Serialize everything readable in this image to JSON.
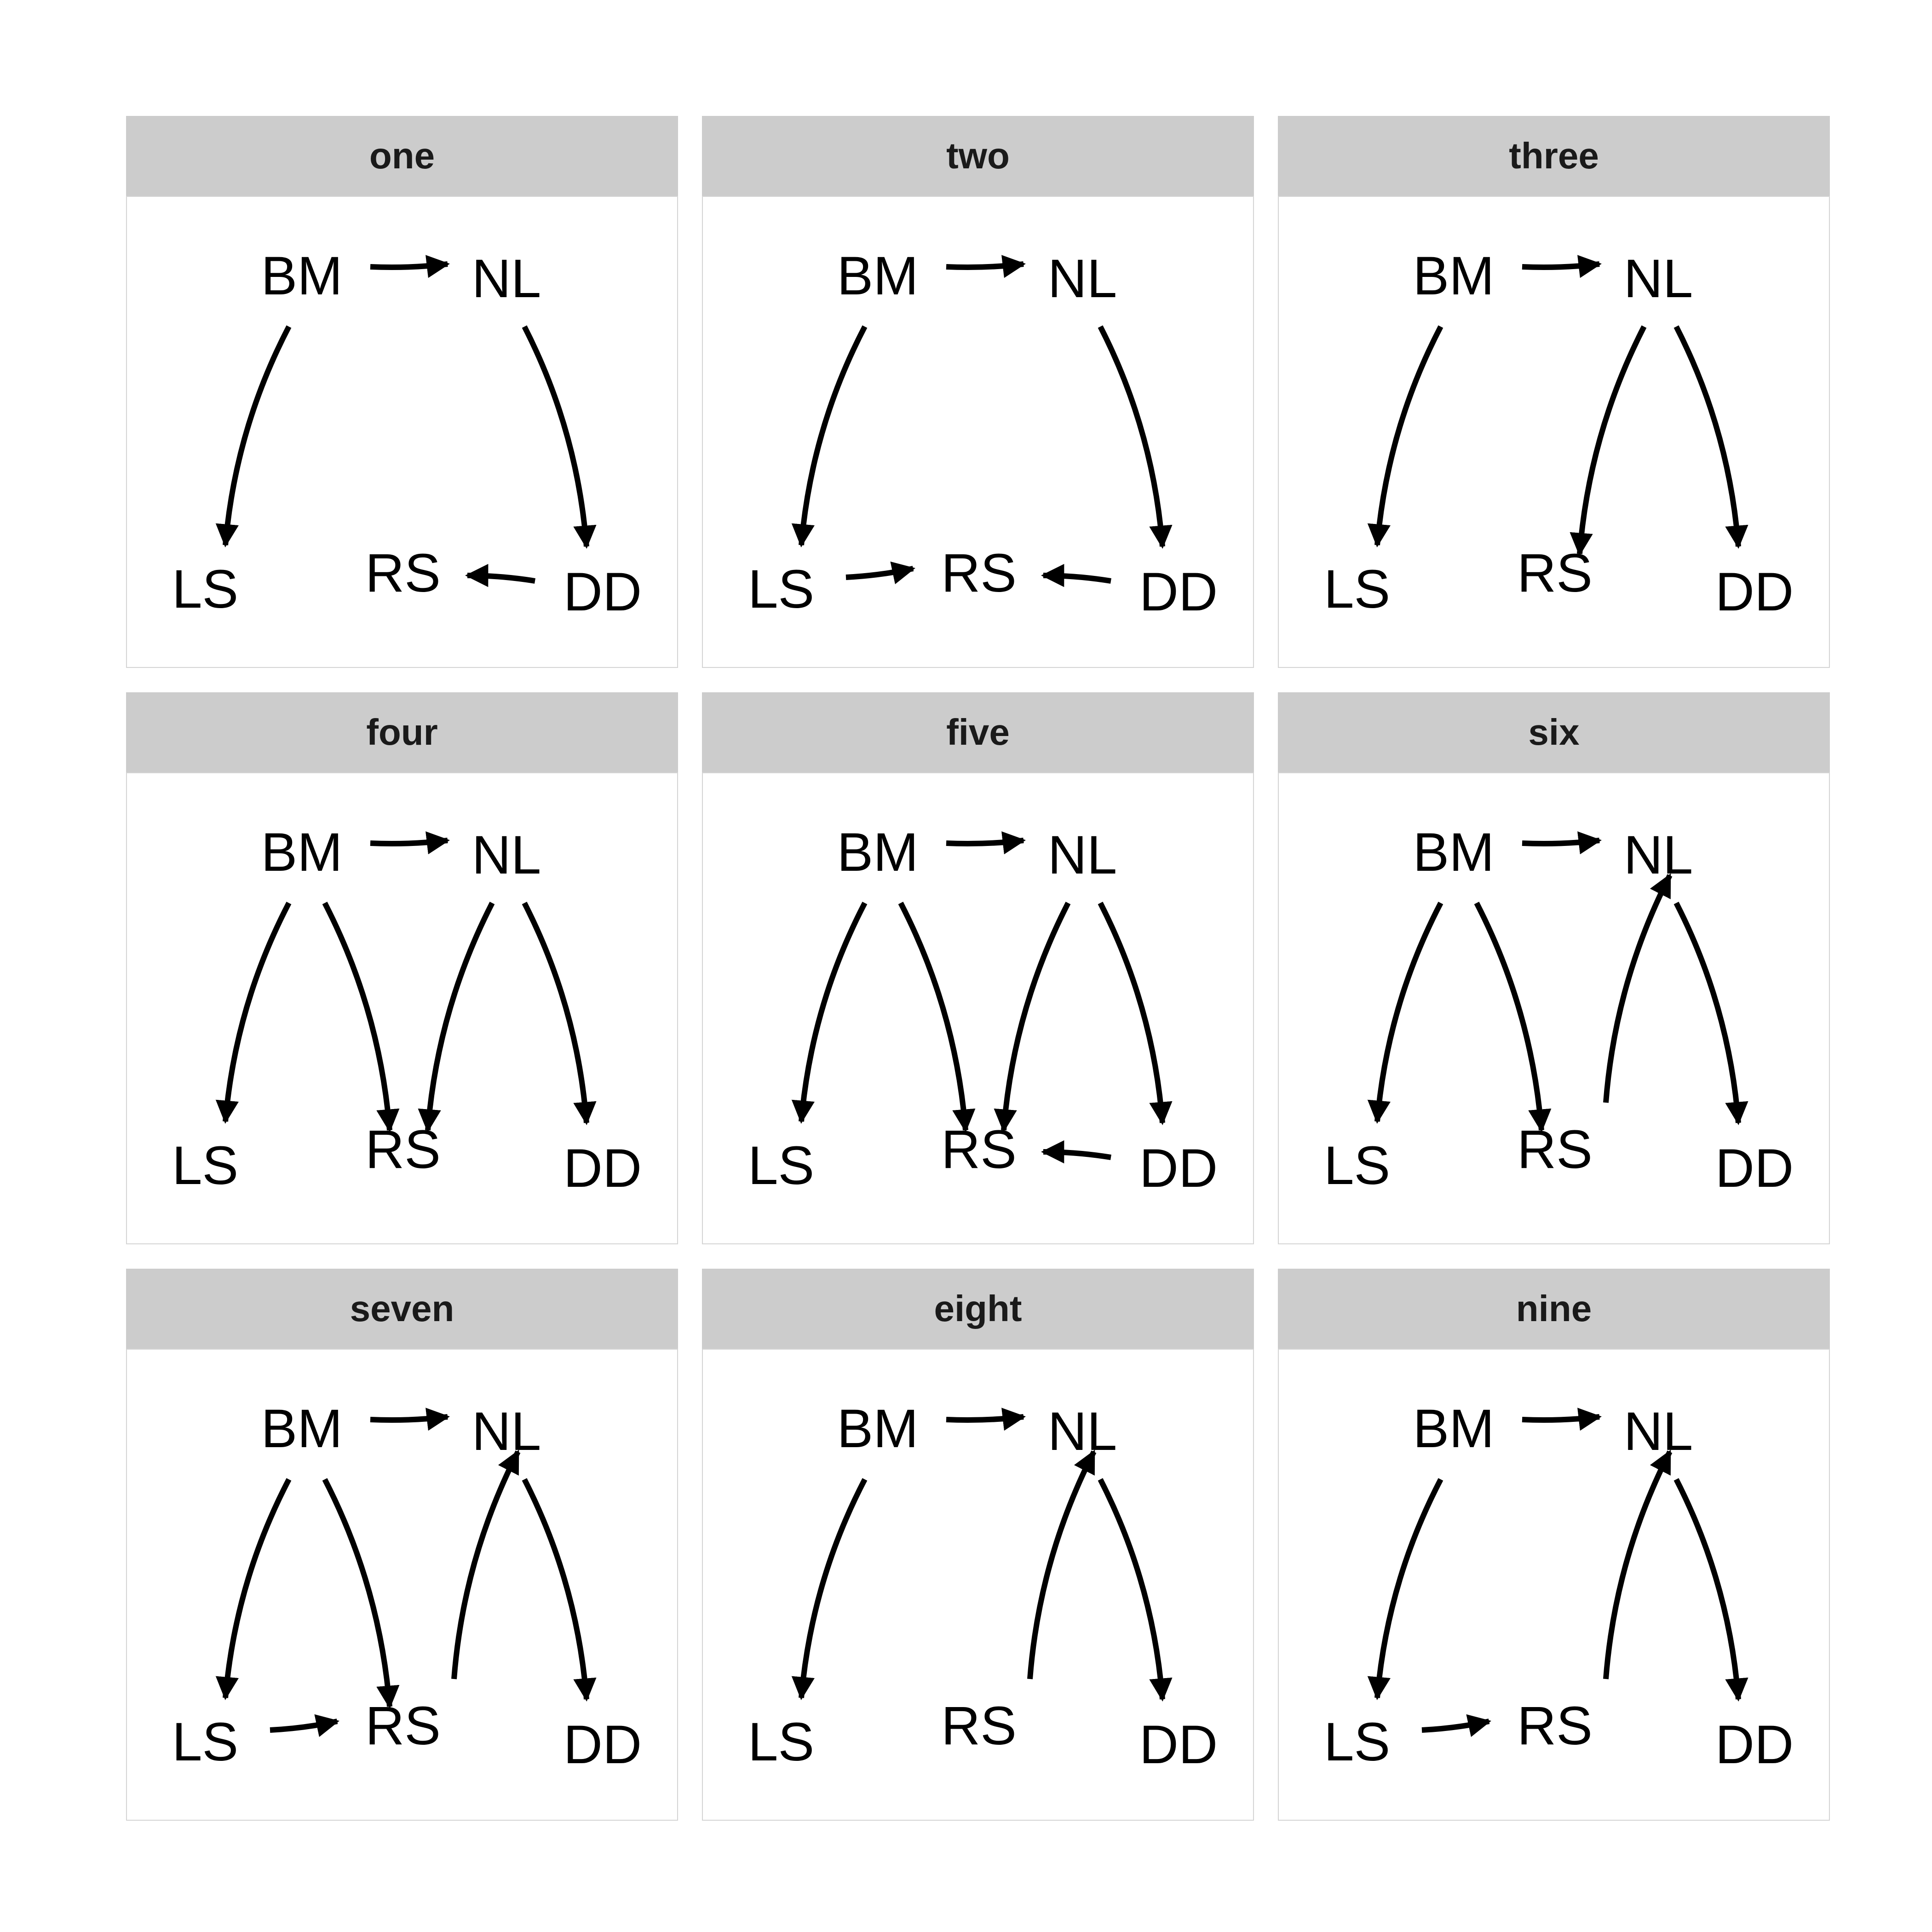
{
  "nodes": [
    {
      "id": "BM",
      "label": "BM"
    },
    {
      "id": "NL",
      "label": "NL"
    },
    {
      "id": "LS",
      "label": "LS"
    },
    {
      "id": "RS",
      "label": "RS"
    },
    {
      "id": "DD",
      "label": "DD"
    }
  ],
  "panels": [
    {
      "title": "one",
      "edges": [
        [
          "BM",
          "NL"
        ],
        [
          "BM",
          "LS"
        ],
        [
          "NL",
          "DD"
        ],
        [
          "DD",
          "RS"
        ]
      ]
    },
    {
      "title": "two",
      "edges": [
        [
          "BM",
          "NL"
        ],
        [
          "BM",
          "LS"
        ],
        [
          "NL",
          "DD"
        ],
        [
          "LS",
          "RS"
        ],
        [
          "DD",
          "RS"
        ]
      ]
    },
    {
      "title": "three",
      "edges": [
        [
          "BM",
          "NL"
        ],
        [
          "BM",
          "LS"
        ],
        [
          "NL",
          "RS"
        ],
        [
          "NL",
          "DD"
        ]
      ]
    },
    {
      "title": "four",
      "edges": [
        [
          "BM",
          "NL"
        ],
        [
          "BM",
          "LS"
        ],
        [
          "BM",
          "RS"
        ],
        [
          "NL",
          "RS"
        ],
        [
          "NL",
          "DD"
        ]
      ]
    },
    {
      "title": "five",
      "edges": [
        [
          "BM",
          "NL"
        ],
        [
          "BM",
          "LS"
        ],
        [
          "BM",
          "RS"
        ],
        [
          "NL",
          "RS"
        ],
        [
          "NL",
          "DD"
        ],
        [
          "DD",
          "RS"
        ]
      ]
    },
    {
      "title": "six",
      "edges": [
        [
          "BM",
          "NL"
        ],
        [
          "BM",
          "LS"
        ],
        [
          "BM",
          "RS"
        ],
        [
          "RS",
          "NL"
        ],
        [
          "NL",
          "DD"
        ]
      ]
    },
    {
      "title": "seven",
      "edges": [
        [
          "BM",
          "NL"
        ],
        [
          "BM",
          "LS"
        ],
        [
          "BM",
          "RS"
        ],
        [
          "RS",
          "NL"
        ],
        [
          "NL",
          "DD"
        ],
        [
          "LS",
          "RS"
        ]
      ]
    },
    {
      "title": "eight",
      "edges": [
        [
          "BM",
          "NL"
        ],
        [
          "BM",
          "LS"
        ],
        [
          "RS",
          "NL"
        ],
        [
          "NL",
          "DD"
        ]
      ]
    },
    {
      "title": "nine",
      "edges": [
        [
          "BM",
          "NL"
        ],
        [
          "BM",
          "LS"
        ],
        [
          "RS",
          "NL"
        ],
        [
          "NL",
          "DD"
        ],
        [
          "LS",
          "RS"
        ]
      ]
    }
  ],
  "colors": {
    "strip": "#cccccc",
    "border": "#d4d4d4",
    "edge": "#000000",
    "text": "#000000"
  }
}
